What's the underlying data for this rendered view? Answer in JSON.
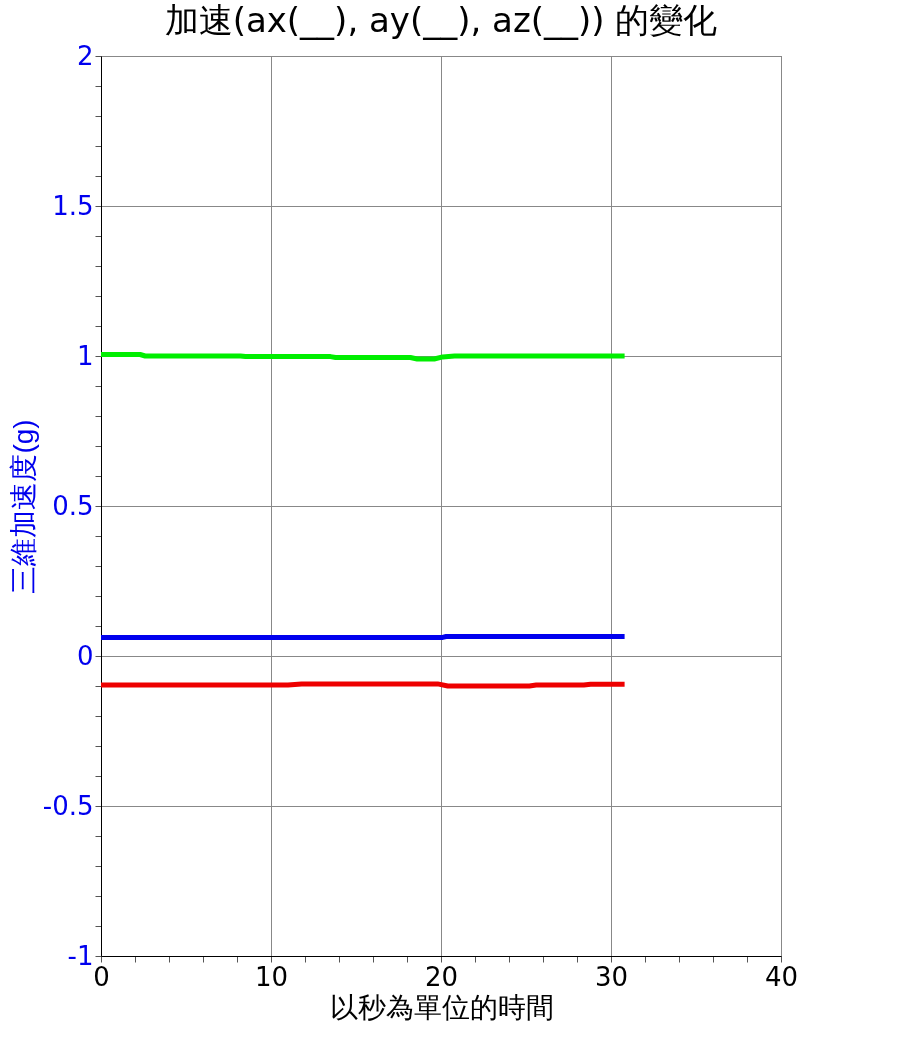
{
  "chart_data": {
    "type": "line",
    "title": "加速(ax(__), ay(__), az(__)) 的變化",
    "xlabel": "以秒為單位的時間",
    "ylabel": "三維加速度(g)",
    "xlim": [
      0,
      40
    ],
    "ylim": [
      -1,
      2
    ],
    "xticks": [
      0,
      {
        "value": 2,
        "label": null
      },
      {
        "value": 4,
        "label": null
      },
      {
        "value": 6,
        "label": null
      },
      {
        "value": 8,
        "label": null
      },
      10,
      {
        "value": 12,
        "label": null
      },
      {
        "value": 14,
        "label": null
      },
      {
        "value": 16,
        "label": null
      },
      {
        "value": 18,
        "label": null
      },
      20,
      {
        "value": 22,
        "label": null
      },
      {
        "value": 24,
        "label": null
      },
      {
        "value": 26,
        "label": null
      },
      {
        "value": 28,
        "label": null
      },
      30,
      {
        "value": 32,
        "label": null
      },
      {
        "value": 34,
        "label": null
      },
      {
        "value": 36,
        "label": null
      },
      {
        "value": 38,
        "label": null
      },
      40
    ],
    "yticks": [
      -1,
      {
        "value": -0.9,
        "label": null
      },
      {
        "value": -0.8,
        "label": null
      },
      {
        "value": -0.7,
        "label": null
      },
      {
        "value": -0.6,
        "label": null
      },
      -0.5,
      {
        "value": -0.4,
        "label": null
      },
      {
        "value": -0.3,
        "label": null
      },
      {
        "value": -0.2,
        "label": null
      },
      {
        "value": -0.1,
        "label": null
      },
      0,
      {
        "value": 0.1,
        "label": null
      },
      {
        "value": 0.2,
        "label": null
      },
      {
        "value": 0.3,
        "label": null
      },
      {
        "value": 0.4,
        "label": null
      },
      0.5,
      {
        "value": 0.6,
        "label": null
      },
      {
        "value": 0.7,
        "label": null
      },
      {
        "value": 0.8,
        "label": null
      },
      {
        "value": 0.9,
        "label": null
      },
      1,
      {
        "value": 1.1,
        "label": null
      },
      {
        "value": 1.2,
        "label": null
      },
      {
        "value": 1.3,
        "label": null
      },
      {
        "value": 1.4,
        "label": null
      },
      1.5,
      {
        "value": 1.6,
        "label": null
      },
      {
        "value": 1.7,
        "label": null
      },
      {
        "value": 1.8,
        "label": null
      },
      {
        "value": 1.9,
        "label": null
      },
      2
    ],
    "grid": true,
    "legend": false,
    "marker": "none",
    "line_style": "solid",
    "series": [
      {
        "color": "#0000ee",
        "x": [
          0,
          20.1,
          20.3,
          30.8
        ],
        "values": [
          0.062,
          0.062,
          0.065,
          0.065
        ]
      },
      {
        "color": "#ee0000",
        "x": [
          0,
          11,
          11.8,
          19.8,
          20.4,
          25.2,
          25.6,
          28.4,
          28.8,
          30.8
        ],
        "values": [
          -0.097,
          -0.097,
          -0.093,
          -0.093,
          -0.1,
          -0.1,
          -0.097,
          -0.097,
          -0.094,
          -0.094
        ]
      },
      {
        "color": "#00ee00",
        "x": [
          0,
          2.3,
          2.6,
          8.2,
          8.5,
          13.5,
          13.8,
          18.2,
          18.6,
          19.6,
          20.1,
          20.8,
          30.8
        ],
        "values": [
          1.005,
          1.005,
          1.0,
          1.0,
          0.998,
          0.998,
          0.995,
          0.995,
          0.99,
          0.99,
          0.997,
          1.0,
          1.0
        ]
      }
    ]
  }
}
